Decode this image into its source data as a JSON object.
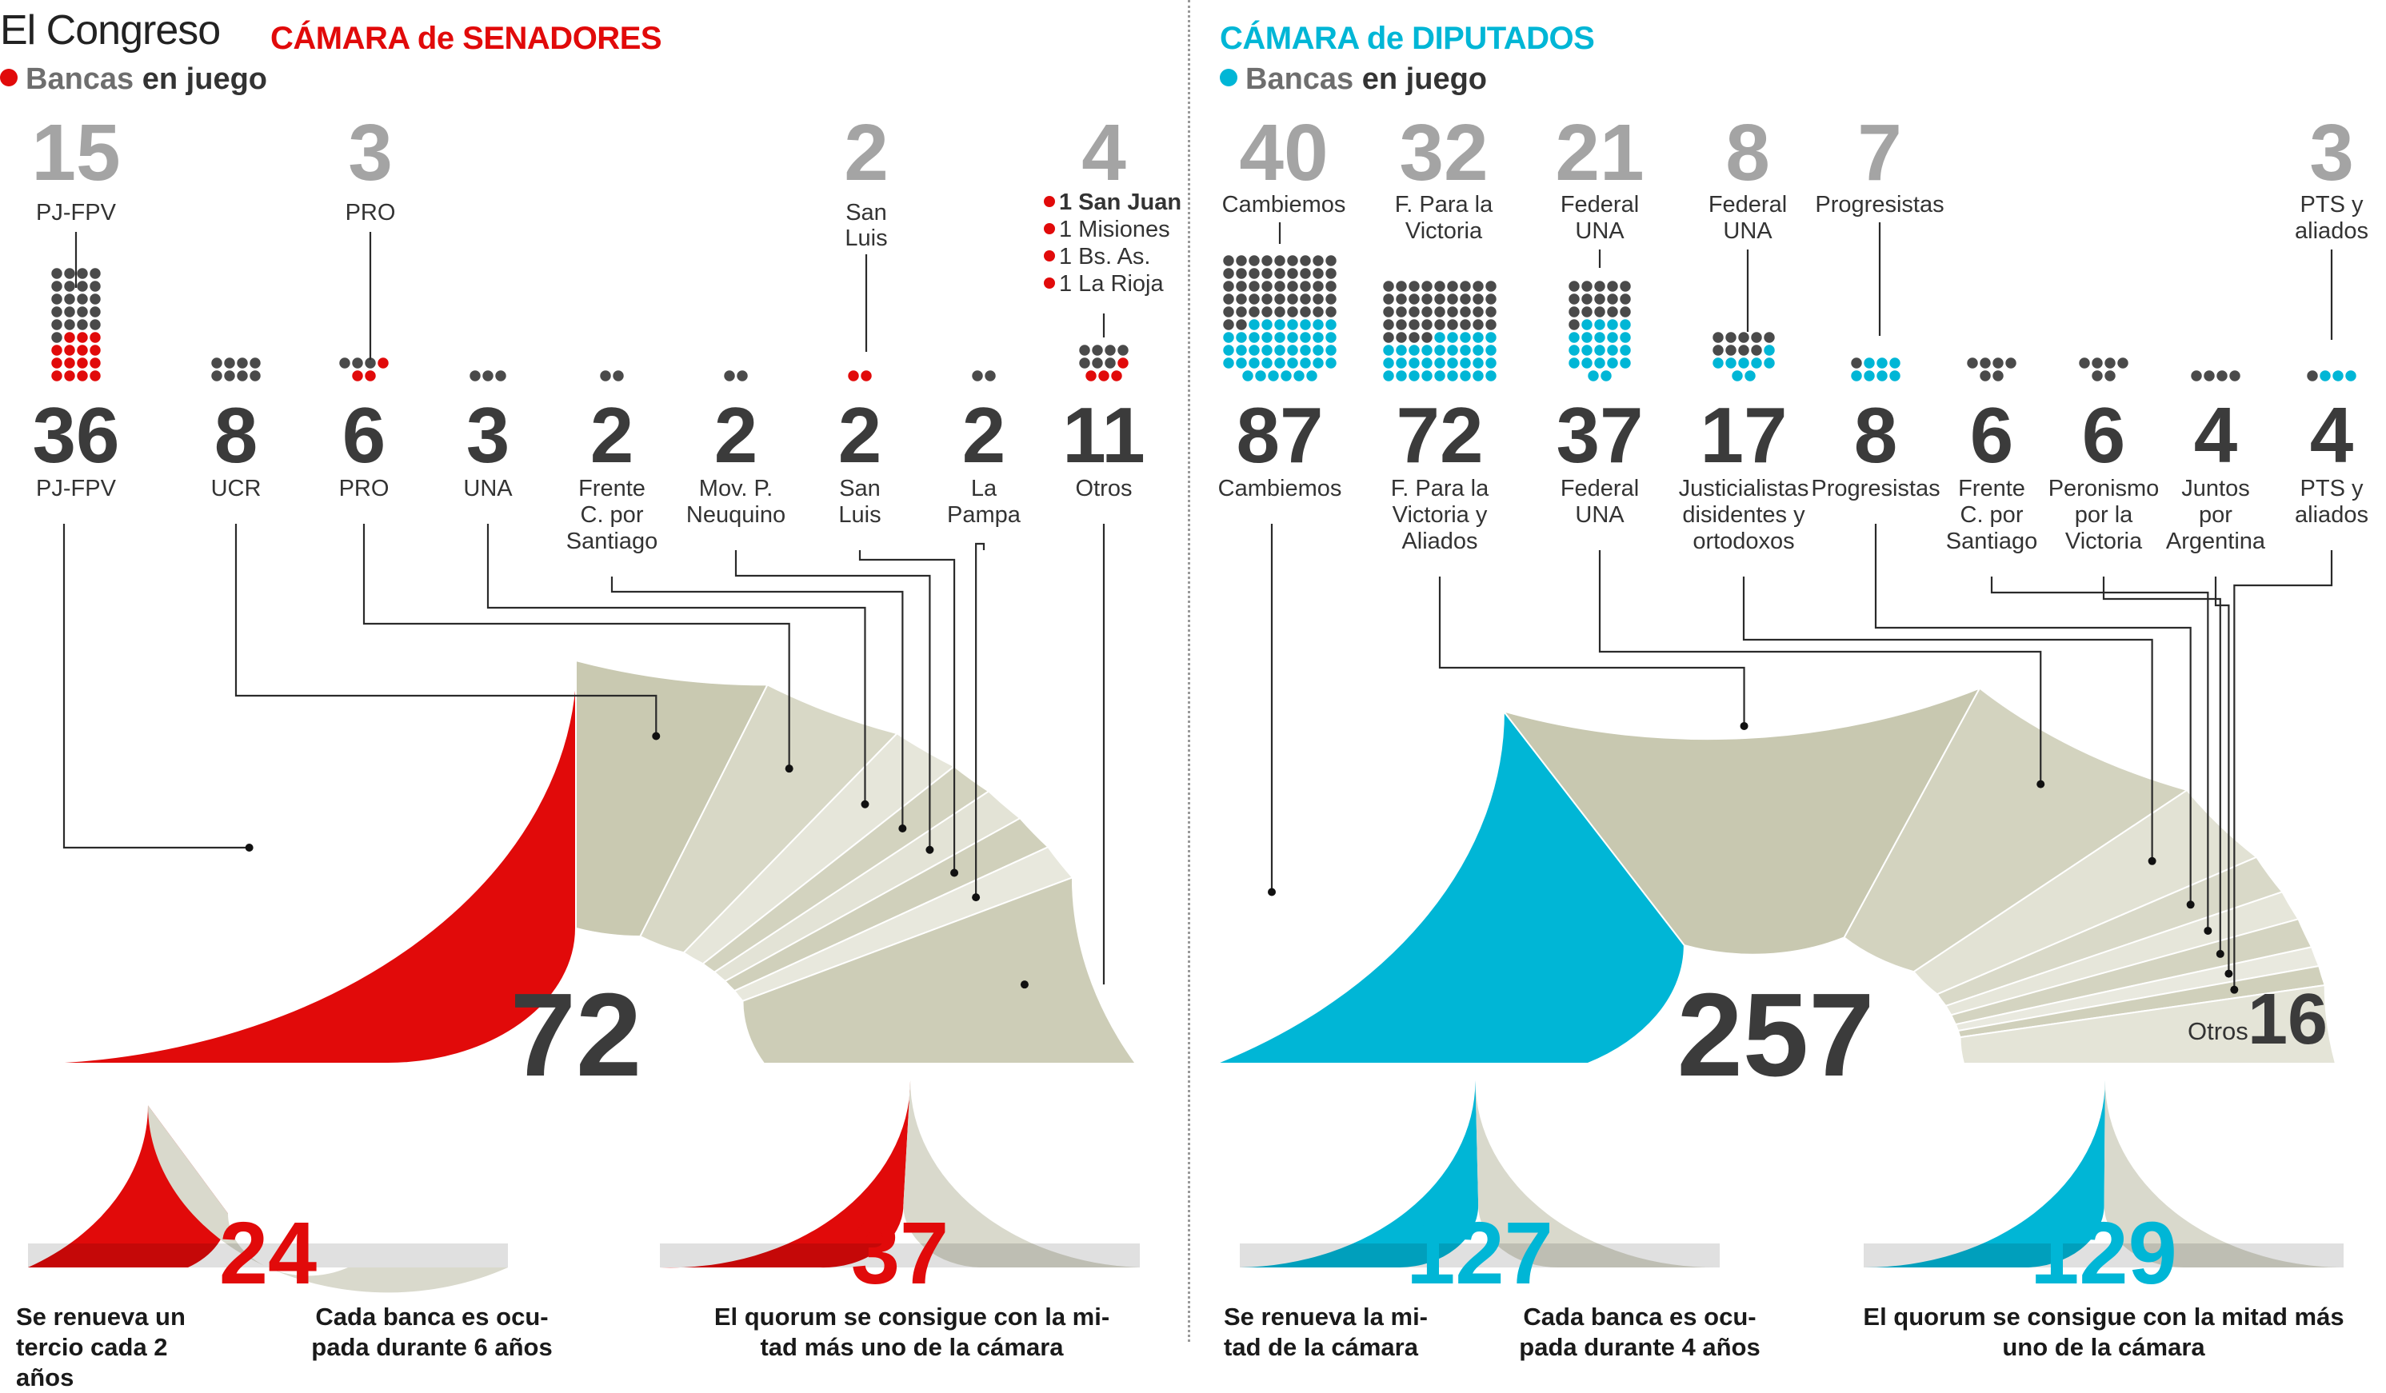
{
  "header": {
    "title": "El Congreso",
    "senate_title": "CÁMARA de SENADORES",
    "deputies_title": "CÁMARA de DIPUTADOS",
    "subtitle_a": "Bancas",
    "subtitle_b": "en juego"
  },
  "colors": {
    "senate": "#e10a0a",
    "senate_dark": "#a80000",
    "deputies": "#00b6d6",
    "deputies_dark": "#00879f",
    "muted": "#cfcfb9",
    "dark_text": "#3b3b3b"
  },
  "chart_data": [
    {
      "type": "parliament",
      "title": "CÁMARA de SENADORES",
      "total": 72,
      "seats_in_play_label": "Bancas en juego",
      "parties": [
        {
          "name": "PJ-FPV",
          "label": "PJ-FPV",
          "seats": 36,
          "in_play": 15,
          "in_play_label": "PJ-FPV"
        },
        {
          "name": "UCR",
          "label": "UCR",
          "seats": 8,
          "in_play": 0
        },
        {
          "name": "PRO",
          "label": "PRO",
          "seats": 6,
          "in_play": 3,
          "in_play_label": "PRO"
        },
        {
          "name": "UNA",
          "label": "UNA",
          "seats": 3,
          "in_play": 0
        },
        {
          "name": "Frente C. por Santiago",
          "label": "Frente C. por Santiago",
          "seats": 2,
          "in_play": 0
        },
        {
          "name": "Mov. P. Neuquino",
          "label": "Mov. P. Neuquino",
          "seats": 2,
          "in_play": 0
        },
        {
          "name": "San Luis",
          "label": "San Luis",
          "seats": 2,
          "in_play": 2,
          "in_play_label": "San Luis"
        },
        {
          "name": "La Pampa",
          "label": "La Pampa",
          "seats": 2,
          "in_play": 0
        },
        {
          "name": "Otros",
          "label": "Otros",
          "seats": 11,
          "in_play": 4
        }
      ],
      "others_in_play": [
        "1 San Juan",
        "1 Misiones",
        "1 Bs. As.",
        "1 La Rioja"
      ]
    },
    {
      "type": "parliament",
      "title": "CÁMARA de DIPUTADOS",
      "total": 257,
      "seats_in_play_label": "Bancas en juego",
      "parties": [
        {
          "name": "Cambiemos",
          "label": "Cambiemos",
          "seats": 87,
          "in_play": 40,
          "in_play_label": "Cambiemos"
        },
        {
          "name": "F. Para la Victoria y Aliados",
          "label": "F. Para la Victoria y Aliados",
          "seats": 72,
          "in_play": 32,
          "in_play_label": "F. Para la Victoria"
        },
        {
          "name": "Federal UNA",
          "label": "Federal UNA",
          "seats": 37,
          "in_play": 21,
          "in_play_label": "Federal UNA"
        },
        {
          "name": "Justicialistas disidentes y ortodoxos",
          "label": "Justicialistas disidentes y ortodoxos",
          "seats": 17,
          "in_play": 8,
          "in_play_label": "Federal UNA"
        },
        {
          "name": "Progresistas",
          "label": "Progresistas",
          "seats": 8,
          "in_play": 7,
          "in_play_label": "Progresistas"
        },
        {
          "name": "Frente C. por Santiago",
          "label": "Frente C. por Santiago",
          "seats": 6,
          "in_play": 0
        },
        {
          "name": "Peronismo por la Victoria",
          "label": "Peronismo por la Victoria",
          "seats": 6,
          "in_play": 0
        },
        {
          "name": "Juntos por Argentina",
          "label": "Juntos por Argentina",
          "seats": 4,
          "in_play": 0
        },
        {
          "name": "PTS y aliados",
          "label": "PTS y aliados",
          "seats": 4,
          "in_play": 3,
          "in_play_label": "PTS y aliados"
        }
      ],
      "others_label": "Otros",
      "others_seats": 16
    },
    {
      "type": "gauge",
      "chamber": "senadores",
      "value": 24,
      "total": 72,
      "captions": [
        "Se renueva un tercio cada 2 años",
        "Cada banca es ocupada durante 6 años"
      ],
      "caption_lines": [
        [
          "Se renueva un",
          "tercio cada 2 años"
        ],
        [
          "Cada banca es ocu-",
          "pada durante 6 años"
        ]
      ]
    },
    {
      "type": "gauge",
      "chamber": "senadores",
      "value": 37,
      "total": 72,
      "captions": [
        "El quorum se consigue con la mitad más uno de la cámara"
      ],
      "caption_lines": [
        [
          "El quorum se consigue con la mi-",
          "tad más uno de la cámara"
        ]
      ]
    },
    {
      "type": "gauge",
      "chamber": "diputados",
      "value": 127,
      "total": 257,
      "captions": [
        "Se renueva la mitad de la cámara",
        "Cada banca es ocupada durante 4 años"
      ],
      "caption_lines": [
        [
          "Se renueva la mi-",
          "tad de la cámara"
        ],
        [
          "Cada banca es ocu-",
          "pada durante 4 años"
        ]
      ]
    },
    {
      "type": "gauge",
      "chamber": "diputados",
      "value": 129,
      "total": 257,
      "captions": [
        "El quorum se consigue con la mitad más uno de la cámara"
      ],
      "caption_lines": [
        [
          "El quorum se consigue con la mitad más",
          "uno de la cámara"
        ]
      ]
    }
  ]
}
